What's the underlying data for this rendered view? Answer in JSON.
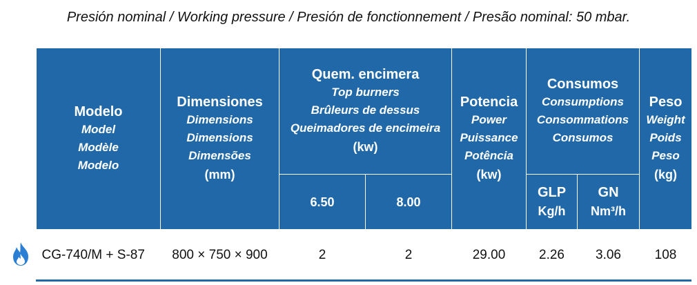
{
  "caption": "Presión nominal / Working pressure / Presión de fonctionnement / Presão nominal: 50 mbar.",
  "headers": {
    "model": {
      "title": "Modelo",
      "translations": [
        "Model",
        "Modèle",
        "Modelo"
      ]
    },
    "dimensions": {
      "title": "Dimensiones",
      "translations": [
        "Dimensions",
        "Dimensions",
        "Dimensões"
      ],
      "unit": "(mm)"
    },
    "burners": {
      "title": "Quem. encimera",
      "translations": [
        "Top burners",
        "Brûleurs de dessus",
        "Queimadores de encimeira"
      ],
      "unit": "(kw)",
      "sub": [
        "6.50",
        "8.00"
      ]
    },
    "power": {
      "title": "Potencia",
      "translations": [
        "Power",
        "Puissance",
        "Potência"
      ],
      "unit": "(kw)"
    },
    "consumption": {
      "title": "Consumos",
      "translations": [
        "Consumptions",
        "Consommations",
        "Consumos"
      ],
      "sub": [
        {
          "name": "GLP",
          "unit": "Kg/h"
        },
        {
          "name": "GN",
          "unit": "Nm³/h"
        }
      ]
    },
    "weight": {
      "title": "Peso",
      "translations": [
        "Weight",
        "Poids",
        "Peso"
      ],
      "unit": "(kg)"
    }
  },
  "row": {
    "icon": "gas-flame-icon",
    "model": "CG-740/M + S-87",
    "dimensions": "800 × 750 × 900",
    "burners_650": "2",
    "burners_800": "2",
    "power": "29.00",
    "glp": "2.26",
    "gn": "3.06",
    "weight": "108"
  },
  "colors": {
    "header_bg": "#2168a8",
    "header_text": "#ffffff",
    "flame": "#2a7fd4"
  }
}
